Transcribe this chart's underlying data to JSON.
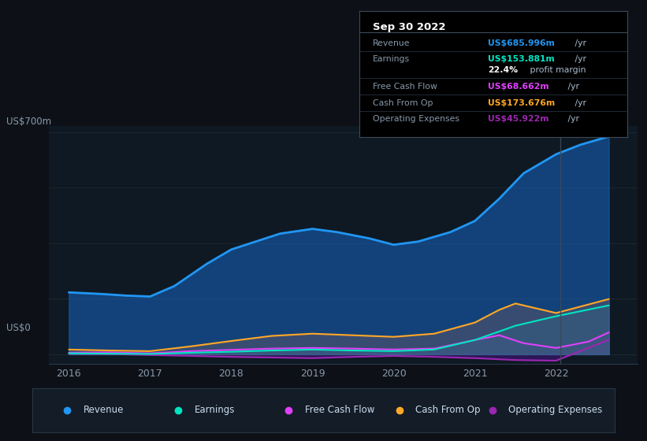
{
  "background_color": "#0d1117",
  "chart_bg": "#0f1923",
  "ylabel_top": "US$700m",
  "ylabel_bottom": "US$0",
  "x_ticks": [
    "2016",
    "2017",
    "2018",
    "2019",
    "2020",
    "2021",
    "2022"
  ],
  "x_tick_positions": [
    2016,
    2017,
    2018,
    2019,
    2020,
    2021,
    2022
  ],
  "series_order_fill": [
    "Operating Expenses",
    "Free Cash Flow",
    "Earnings",
    "Cash From Op",
    "Revenue"
  ],
  "series": {
    "Revenue": {
      "color": "#2196f3",
      "fill_color": "#1565c0",
      "fill_alpha": 0.55,
      "linewidth": 2.0,
      "x": [
        2016.0,
        2016.4,
        2016.7,
        2017.0,
        2017.3,
        2017.7,
        2018.0,
        2018.3,
        2018.6,
        2019.0,
        2019.3,
        2019.7,
        2020.0,
        2020.3,
        2020.7,
        2021.0,
        2021.3,
        2021.6,
        2022.0,
        2022.3,
        2022.65
      ],
      "y": [
        195,
        190,
        185,
        182,
        215,
        285,
        330,
        355,
        380,
        395,
        385,
        365,
        345,
        355,
        385,
        420,
        490,
        570,
        630,
        660,
        686
      ]
    },
    "Earnings": {
      "color": "#00e5c0",
      "fill_color": "#00695c",
      "fill_alpha": 0.45,
      "linewidth": 1.5,
      "x": [
        2016.0,
        2016.5,
        2017.0,
        2017.5,
        2018.0,
        2018.5,
        2019.0,
        2019.5,
        2020.0,
        2020.5,
        2021.0,
        2021.5,
        2022.0,
        2022.65
      ],
      "y": [
        3,
        2,
        1,
        5,
        8,
        12,
        15,
        12,
        10,
        15,
        45,
        90,
        120,
        154
      ]
    },
    "Free Cash Flow": {
      "color": "#e040fb",
      "fill_color": "#6a1b9a",
      "fill_alpha": 0.3,
      "linewidth": 1.5,
      "x": [
        2016.0,
        2016.5,
        2017.0,
        2017.5,
        2018.0,
        2018.5,
        2019.0,
        2019.5,
        2020.0,
        2020.5,
        2021.0,
        2021.3,
        2021.6,
        2022.0,
        2022.4,
        2022.65
      ],
      "y": [
        5,
        6,
        3,
        10,
        14,
        18,
        20,
        18,
        15,
        18,
        45,
        60,
        35,
        20,
        40,
        69
      ]
    },
    "Cash From Op": {
      "color": "#ffa726",
      "fill_color": "#e65100",
      "fill_alpha": 0.4,
      "linewidth": 1.5,
      "x": [
        2016.0,
        2016.5,
        2017.0,
        2017.5,
        2018.0,
        2018.5,
        2019.0,
        2019.5,
        2020.0,
        2020.5,
        2021.0,
        2021.3,
        2021.5,
        2022.0,
        2022.65
      ],
      "y": [
        15,
        12,
        10,
        25,
        42,
        58,
        65,
        60,
        55,
        65,
        100,
        140,
        160,
        130,
        174
      ]
    },
    "Operating Expenses": {
      "color": "#9c27b0",
      "fill_color": "#4a148c",
      "fill_alpha": 0.5,
      "linewidth": 1.5,
      "x": [
        2016.0,
        2016.5,
        2017.0,
        2017.5,
        2018.0,
        2018.5,
        2019.0,
        2019.5,
        2020.0,
        2020.5,
        2021.0,
        2021.5,
        2022.0,
        2022.65
      ],
      "y": [
        2,
        1,
        -2,
        -5,
        -8,
        -10,
        -12,
        -8,
        -5,
        -8,
        -12,
        -18,
        -20,
        46
      ]
    }
  },
  "xlim": [
    2015.75,
    2023.0
  ],
  "ylim": [
    -30,
    720
  ],
  "vertical_line_x": 2022.05,
  "vertical_line_color": "#3a4a5a",
  "grid_y_positions": [
    0,
    175,
    350,
    525,
    700
  ],
  "info_box": {
    "date": "Sep 30 2022",
    "rows": [
      {
        "label": "Revenue",
        "value": "US$685.996m",
        "value_color": "#2196f3"
      },
      {
        "label": "Earnings",
        "value": "US$153.881m",
        "value_color": "#00e5c0"
      },
      {
        "label": "",
        "bold": "22.4%",
        "rest": " profit margin"
      },
      {
        "label": "Free Cash Flow",
        "value": "US$68.662m",
        "value_color": "#e040fb"
      },
      {
        "label": "Cash From Op",
        "value": "US$173.676m",
        "value_color": "#ffa726"
      },
      {
        "label": "Operating Expenses",
        "value": "US$45.922m",
        "value_color": "#9c27b0"
      }
    ]
  },
  "legend": [
    {
      "label": "Revenue",
      "color": "#2196f3"
    },
    {
      "label": "Earnings",
      "color": "#00e5c0"
    },
    {
      "label": "Free Cash Flow",
      "color": "#e040fb"
    },
    {
      "label": "Cash From Op",
      "color": "#ffa726"
    },
    {
      "label": "Operating Expenses",
      "color": "#9c27b0"
    }
  ]
}
